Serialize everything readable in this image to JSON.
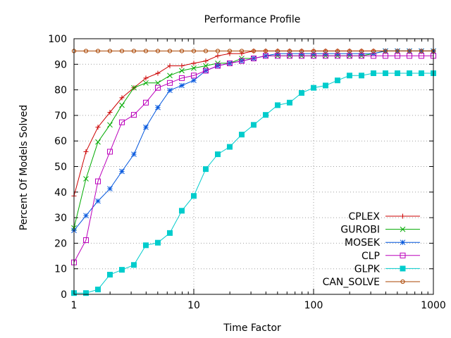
{
  "chart_data": {
    "type": "line",
    "title": "Performance Profile",
    "xlabel": "Time Factor",
    "ylabel": "Percent Of Models Solved",
    "x_scale": "log",
    "xlim": [
      1,
      1000
    ],
    "ylim": [
      0,
      100
    ],
    "x_ticks": [
      1,
      10,
      100,
      1000
    ],
    "y_ticks": [
      0,
      10,
      20,
      30,
      40,
      50,
      60,
      70,
      80,
      90,
      100
    ],
    "grid": true,
    "legend_position": "bottom-right",
    "x": [
      1,
      1.259,
      1.585,
      1.995,
      2.512,
      3.162,
      3.981,
      5.012,
      6.31,
      7.943,
      10,
      12.59,
      15.85,
      19.95,
      25.12,
      31.62,
      39.81,
      50.12,
      63.1,
      79.43,
      100,
      125.9,
      158.5,
      199.5,
      251.2,
      316.2,
      398.1,
      501.2,
      631,
      794.3,
      1000
    ],
    "series": [
      {
        "name": "CPLEX",
        "color": "#cc0000",
        "marker": "plus",
        "values": [
          38.5,
          55.8,
          65.4,
          71.2,
          76.9,
          80.8,
          84.6,
          86.5,
          89.4,
          89.4,
          90.4,
          91.3,
          93.3,
          94.2,
          94.2,
          95.2,
          95.2,
          95.2,
          95.2,
          95.2,
          95.2,
          95.2,
          95.2,
          95.2,
          95.2,
          95.2,
          95.2,
          95.2,
          95.2,
          95.2,
          95.2
        ]
      },
      {
        "name": "GUROBI",
        "color": "#00aa00",
        "marker": "x",
        "values": [
          26.0,
          45.2,
          59.6,
          66.3,
          74.0,
          80.8,
          82.7,
          82.7,
          85.6,
          87.5,
          88.5,
          89.4,
          90.4,
          90.4,
          92.3,
          92.3,
          93.3,
          93.3,
          93.3,
          93.3,
          93.3,
          93.3,
          93.3,
          93.3,
          93.3,
          94.2,
          95.2,
          95.2,
          95.2,
          95.2,
          95.2
        ]
      },
      {
        "name": "MOSEK",
        "color": "#0055dd",
        "marker": "star",
        "values": [
          25.0,
          30.8,
          36.5,
          41.3,
          48.1,
          54.8,
          65.4,
          73.1,
          79.8,
          81.7,
          83.7,
          87.5,
          89.4,
          90.4,
          91.3,
          92.3,
          93.3,
          94.2,
          94.2,
          94.2,
          94.2,
          94.2,
          94.2,
          94.2,
          94.2,
          94.2,
          95.2,
          95.2,
          95.2,
          95.2,
          95.2
        ]
      },
      {
        "name": "CLP",
        "color": "#bb00bb",
        "marker": "square-open",
        "values": [
          12.5,
          21.2,
          44.2,
          55.8,
          67.3,
          70.2,
          75.0,
          80.8,
          82.7,
          84.6,
          85.6,
          87.5,
          89.4,
          90.4,
          91.3,
          92.3,
          93.3,
          93.3,
          93.3,
          93.3,
          93.3,
          93.3,
          93.3,
          93.3,
          93.3,
          93.3,
          93.3,
          93.3,
          93.3,
          93.3,
          93.3
        ]
      },
      {
        "name": "GLPK",
        "color": "#00cccc",
        "marker": "square-filled",
        "values": [
          0.5,
          0.5,
          1.9,
          7.7,
          9.6,
          11.5,
          19.2,
          20.2,
          24.0,
          32.7,
          38.5,
          49.0,
          54.8,
          57.7,
          62.5,
          66.3,
          70.2,
          74.0,
          75.0,
          78.8,
          80.8,
          81.7,
          83.7,
          85.6,
          85.6,
          86.5,
          86.5,
          86.5,
          86.5,
          86.5,
          86.5
        ]
      },
      {
        "name": "CAN_SOLVE",
        "color": "#aa4400",
        "marker": "circle-open",
        "values": [
          95.2,
          95.2,
          95.2,
          95.2,
          95.2,
          95.2,
          95.2,
          95.2,
          95.2,
          95.2,
          95.2,
          95.2,
          95.2,
          95.2,
          95.2,
          95.2,
          95.2,
          95.2,
          95.2,
          95.2,
          95.2,
          95.2,
          95.2,
          95.2,
          95.2,
          95.2,
          95.2,
          95.2,
          95.2,
          95.2,
          95.2
        ]
      }
    ]
  }
}
